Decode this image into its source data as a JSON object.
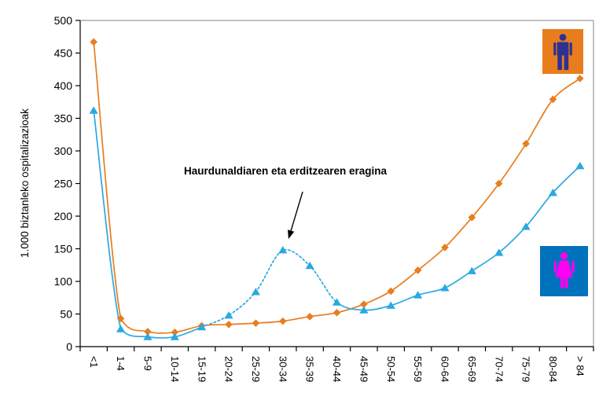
{
  "chart_data": {
    "type": "line",
    "title": "",
    "xlabel": "",
    "ylabel": "1.000 biztanleko ospitalizazioak",
    "ylim": [
      0,
      500
    ],
    "ytick_step": 50,
    "grid": false,
    "legend_position": "icons-right",
    "categories": [
      "<1",
      "1-4",
      "5-9",
      "10-14",
      "15-19",
      "20-24",
      "25-29",
      "30-34",
      "35-39",
      "40-44",
      "45-49",
      "50-54",
      "55-59",
      "60-64",
      "65-69",
      "70-74",
      "75-79",
      "80-84",
      "> 84"
    ],
    "series": [
      {
        "name": "males",
        "color": "#E87D1E",
        "marker": "diamond",
        "line_style": "solid",
        "values": [
          467,
          43,
          23,
          22,
          32,
          34,
          36,
          39,
          46,
          52,
          65,
          85,
          117,
          152,
          198,
          250,
          311,
          379,
          411
        ]
      },
      {
        "name": "females",
        "color": "#29A9E1",
        "marker": "triangle",
        "line_style": "solid-dashed-solid",
        "dashed_range": [
          4,
          9
        ],
        "values": [
          362,
          27,
          15,
          15,
          30,
          48,
          84,
          148,
          124,
          68,
          56,
          63,
          79,
          90,
          116,
          144,
          184,
          236,
          277
        ]
      }
    ],
    "annotation": {
      "text": "Haurdunaldiaren eta erditzearen eragina",
      "text_center": [
        363,
        218
      ],
      "arrow_from": [
        385,
        244
      ],
      "arrow_to": [
        367,
        304
      ],
      "points_at": "female peak at 30-34"
    },
    "icons": {
      "male": {
        "bg": "#E87D1E",
        "fg": "#2E3192"
      },
      "female": {
        "bg": "#0072BC",
        "fg": "#FF00F0"
      }
    },
    "axis_color": "#000000",
    "border_color": "#9B9B9B"
  }
}
